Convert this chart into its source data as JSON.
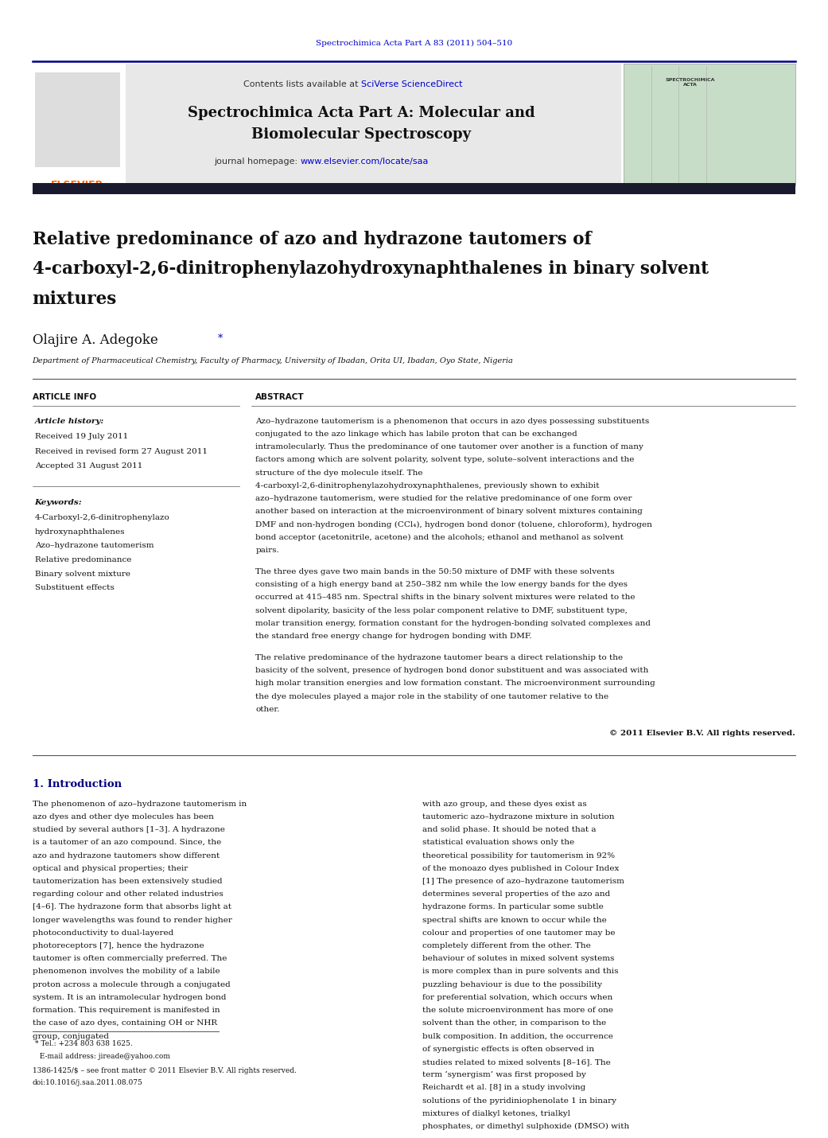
{
  "page_width": 10.21,
  "page_height": 13.51,
  "bg_color": "#ffffff",
  "top_citation": "Spectrochimica Acta Part A 83 (2011) 504–510",
  "journal_header_bg": "#e8e8e8",
  "contents_text": "Contents lists available at ",
  "sciverse_text": "SciVerse ScienceDirect",
  "journal_name_line1": "Spectrochimica Acta Part A: Molecular and",
  "journal_name_line2": "Biomolecular Spectroscopy",
  "homepage_text": "journal homepage: ",
  "homepage_url": "www.elsevier.com/locate/saa",
  "dark_bar_color": "#1a1a2e",
  "article_title_line1": "Relative predominance of azo and hydrazone tautomers of",
  "article_title_line2": "4-carboxyl-2,6-dinitrophenylazoh​ydroxynaphthalenes in binary solvent",
  "article_title_line3": "mixtures",
  "author": "Olajire A. Adegoke",
  "author_star": "*",
  "affiliation": "Department of Pharmaceutical Chemistry, Faculty of Pharmacy, University of Ibadan, Orita UI, Ibadan, Oyo State, Nigeria",
  "article_info_header": "ARTICLE INFO",
  "abstract_header": "ABSTRACT",
  "article_history_label": "Article history:",
  "received": "Received 19 July 2011",
  "revised": "Received in revised form 27 August 2011",
  "accepted": "Accepted 31 August 2011",
  "keywords_label": "Keywords:",
  "keywords": [
    "4-Carboxyl-2,6-dinitrophenylazo",
    "hydroxynaphthalenes",
    "Azo–hydrazone tautomerism",
    "Relative predominance",
    "Binary solvent mixture",
    "Substituent effects"
  ],
  "abstract_para1": "Azo–hydrazone tautomerism is a phenomenon that occurs in azo dyes possessing substituents conjugated to the azo linkage which has labile proton that can be exchanged intramolecularly. Thus the predominance of one tautomer over another is a function of many factors among which are solvent polarity, solvent type, solute–solvent interactions and the structure of the dye molecule itself. The 4-carboxyl-2,6-dinitrophenylazoh​ydroxynap​hthalenes, previously shown to exhibit azo–hydrazone tautomerism, were studied for the relative predominance of one form over another based on interaction at the microenvironment of binary solvent mixtures containing DMF and non-hydrogen bonding (CCl₄), hydrogen bond donor (toluene, chloroform), hydrogen bond acceptor (acetonitrile, acetone) and the alcohols; ethanol and methanol as solvent pairs.",
  "abstract_para2": "The three dyes gave two main bands in the 50:50 mixture of DMF with these solvents consisting of a high energy band at 250–382 nm while the low energy bands for the dyes occurred at 415–485 nm. Spectral shifts in the binary solvent mixtures were related to the solvent dipolarity, basicity of the less polar component relative to DMF, substituent type, molar transition energy, formation constant for the hydrogen-bonding solvated complexes and the standard free energy change for hydrogen bonding with DMF.",
  "abstract_para3": "The relative predominance of the hydrazone tautomer bears a direct relationship to the basicity of the solvent, presence of hydrogen bond donor substituent and was associated with high molar transition energies and low formation constant. The microenvironment surrounding the dye molecules played a major role in the stability of one tautomer relative to the other.",
  "copyright": "© 2011 Elsevier B.V. All rights reserved.",
  "intro_header": "1. Introduction",
  "intro_col1": "The phenomenon of azo–hydrazone tautomerism in azo dyes and other dye molecules has been studied by several authors [1–3]. A hydrazone is a tautomer of an azo compound. Since, the azo and hydrazone tautomers show different optical and physical properties; their tautomerization has been extensively studied regarding colour and other related industries [4–6]. The hydrazone form that absorbs light at longer wavelengths was found to render higher photoconductivity to dual-layered photoreceptors [7], hence the hydrazone tautomer is often commercially preferred. The phenomenon involves the mobility of a labile proton across a molecule through a conjugated system. It is an intramolecular hydrogen bond formation. This requirement is manifested in the case of azo dyes, containing OH or NHR group, conjugated",
  "intro_col2": "with azo group, and these dyes exist as tautomeric azo–hydrazone mixture in solution and solid phase. It should be noted that a statistical evaluation shows only the theoretical possibility for tautomerism in 92% of the monoazo dyes published in Colour Index [1] The presence of azo–hydrazone tautomerism determines several properties of the azo and hydrazone forms. In particular some subtle spectral shifts are known to occur while the colour and properties of one tautomer may be completely different from the other. The behaviour of solutes in mixed solvent systems is more complex than in pure solvents and this puzzling behaviour is due to the possibility for preferential solvation, which occurs when the solute microenvironment has more of one solvent than the other, in comparison to the bulk composition. In addition, the occurrence of synergistic effects is often observed in studies related to mixed solvents [8–16]. The term ‘synergism’ was first proposed by Reichardt et al. [8] in a study involving solutions of the pyridiniophenolate 1 in binary mixtures of dialkyl ketones, trialkyl phosphates, or dimethyl sulphoxide (DMSO) with",
  "footnote": "* Tel.: +234 803 638 1625.",
  "footnote2": "  E-mail address: jireade@yahoo.com",
  "issn_line": "1386-1425/$ – see front matter © 2011 Elsevier B.V. All rights reserved.",
  "doi_line": "doi:10.1016/j.saa.2011.08.075",
  "link_color": "#0000cc",
  "elsevier_orange": "#ff6600",
  "header_line_color": "#00008b"
}
